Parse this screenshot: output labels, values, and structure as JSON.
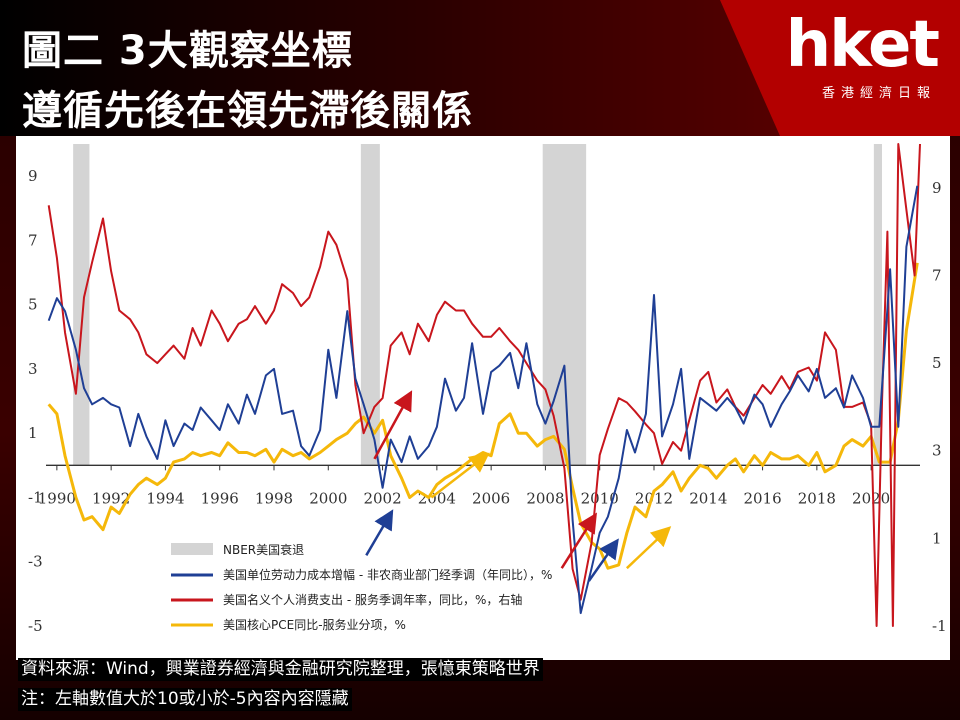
{
  "header": {
    "title_line1": "圖二 3大觀察坐標",
    "title_line2": "遵循先後在領先滯後關係",
    "logo": "hket",
    "logo_sub": "香港經濟日報"
  },
  "footer": {
    "source": "資料來源：Wind，興業證券經濟與金融研究院整理，張憶東策略世界",
    "note": "注：左軸數值大於10或小於-5內容內容隱藏"
  },
  "colors": {
    "blue": "#1f3f95",
    "red": "#c8161d",
    "yellow": "#f5b80a",
    "recession": "#d4d4d4"
  },
  "chart_data": {
    "type": "line",
    "x_ticks": [
      "1990",
      "1992",
      "1994",
      "1996",
      "1998",
      "2000",
      "2002",
      "2004",
      "2006",
      "2008",
      "2010",
      "2012",
      "2014",
      "2016",
      "2018",
      "2020"
    ],
    "xlim": [
      1989.6,
      2021.8
    ],
    "left_axis": {
      "ticks": [
        "9",
        "7",
        "5",
        "3",
        "1",
        "-1",
        "-3",
        "-5"
      ],
      "ylim": [
        -5,
        10
      ]
    },
    "right_axis": {
      "ticks": [
        "9",
        "7",
        "5",
        "3",
        "1",
        "-1"
      ],
      "ylim": [
        -1,
        10
      ]
    },
    "recessions": [
      [
        1990.6,
        1991.2
      ],
      [
        2001.2,
        2001.9
      ],
      [
        2007.9,
        2009.5
      ],
      [
        2020.1,
        2020.4
      ]
    ],
    "legend": [
      {
        "label": "NBER美国衰退",
        "kind": "band"
      },
      {
        "label": "美国单位劳动力成本增幅 - 非农商业部门经季调（年同比），%",
        "kind": "blue"
      },
      {
        "label": "美国名义个人消费支出 - 服务季调年率，同比，%，右轴",
        "kind": "red"
      },
      {
        "label": "美国核心PCE同比-服务业分项，%",
        "kind": "yellow"
      }
    ],
    "series": [
      {
        "key": "blue",
        "axis": "left",
        "x": [
          1989.7,
          1990.0,
          1990.3,
          1990.7,
          1991.0,
          1991.3,
          1991.7,
          1992.0,
          1992.3,
          1992.7,
          1993.0,
          1993.3,
          1993.7,
          1994.0,
          1994.3,
          1994.7,
          1995.0,
          1995.3,
          1995.7,
          1996.0,
          1996.3,
          1996.7,
          1997.0,
          1997.3,
          1997.7,
          1998.0,
          1998.3,
          1998.7,
          1999.0,
          1999.3,
          1999.7,
          2000.0,
          2000.3,
          2000.7,
          2001.0,
          2001.3,
          2001.7,
          2002.0,
          2002.3,
          2002.7,
          2003.0,
          2003.3,
          2003.7,
          2004.0,
          2004.3,
          2004.7,
          2005.0,
          2005.3,
          2005.7,
          2006.0,
          2006.3,
          2006.7,
          2007.0,
          2007.3,
          2007.7,
          2008.0,
          2008.3,
          2008.7,
          2009.0,
          2009.3,
          2009.7,
          2010.0,
          2010.3,
          2010.7,
          2011.0,
          2011.3,
          2011.7,
          2012.0,
          2012.3,
          2012.7,
          2013.0,
          2013.3,
          2013.7,
          2014.0,
          2014.3,
          2014.7,
          2015.0,
          2015.3,
          2015.7,
          2016.0,
          2016.3,
          2016.7,
          2017.0,
          2017.3,
          2017.7,
          2018.0,
          2018.3,
          2018.7,
          2019.0,
          2019.3,
          2019.7,
          2020.0,
          2020.3,
          2020.7,
          2021.0,
          2021.3,
          2021.7
        ],
        "y": [
          4.5,
          5.2,
          4.8,
          3.6,
          2.4,
          1.9,
          2.1,
          1.9,
          1.8,
          0.6,
          1.6,
          0.9,
          0.2,
          1.4,
          0.6,
          1.3,
          1.1,
          1.8,
          1.4,
          1.1,
          1.9,
          1.3,
          2.2,
          1.6,
          2.8,
          3.0,
          1.6,
          1.7,
          0.6,
          0.3,
          1.1,
          3.6,
          2.1,
          4.8,
          2.7,
          1.9,
          0.8,
          -0.7,
          0.8,
          0.1,
          0.9,
          0.2,
          0.6,
          1.2,
          2.7,
          1.7,
          2.1,
          3.8,
          1.6,
          2.9,
          3.1,
          3.5,
          2.4,
          3.8,
          1.9,
          1.3,
          2.0,
          3.1,
          -1.7,
          -4.6,
          -3.2,
          -2.1,
          -1.6,
          -0.4,
          1.1,
          0.4,
          1.6,
          5.3,
          0.9,
          1.9,
          3.0,
          0.2,
          2.1,
          1.9,
          1.7,
          2.1,
          1.8,
          1.3,
          2.2,
          1.9,
          1.2,
          1.9,
          2.3,
          2.8,
          2.3,
          3.0,
          2.1,
          2.4,
          1.8,
          2.8,
          2.1,
          1.2,
          1.2,
          6.1,
          1.2,
          6.8,
          8.7
        ]
      },
      {
        "key": "red",
        "axis": "right",
        "x": [
          1989.7,
          1990.0,
          1990.3,
          1990.7,
          1991.0,
          1991.3,
          1991.7,
          1992.0,
          1992.3,
          1992.7,
          1993.0,
          1993.3,
          1993.7,
          1994.0,
          1994.3,
          1994.7,
          1995.0,
          1995.3,
          1995.7,
          1996.0,
          1996.3,
          1996.7,
          1997.0,
          1997.3,
          1997.7,
          1998.0,
          1998.3,
          1998.7,
          1999.0,
          1999.3,
          1999.7,
          2000.0,
          2000.3,
          2000.7,
          2001.0,
          2001.3,
          2001.7,
          2002.0,
          2002.3,
          2002.7,
          2003.0,
          2003.3,
          2003.7,
          2004.0,
          2004.3,
          2004.7,
          2005.0,
          2005.3,
          2005.7,
          2006.0,
          2006.3,
          2006.7,
          2007.0,
          2007.3,
          2007.7,
          2008.0,
          2008.3,
          2008.7,
          2009.0,
          2009.3,
          2009.7,
          2010.0,
          2010.3,
          2010.7,
          2011.0,
          2011.3,
          2011.7,
          2012.0,
          2012.3,
          2012.7,
          2013.0,
          2013.3,
          2013.7,
          2014.0,
          2014.3,
          2014.7,
          2015.0,
          2015.3,
          2015.7,
          2016.0,
          2016.3,
          2016.7,
          2017.0,
          2017.3,
          2017.7,
          2018.0,
          2018.3,
          2018.7,
          2019.0,
          2019.3,
          2019.7,
          2020.0,
          2020.2,
          2020.4,
          2020.6,
          2020.8,
          2021.0,
          2021.3,
          2021.6,
          2021.8
        ],
        "y": [
          8.6,
          7.4,
          5.7,
          4.3,
          6.5,
          7.3,
          8.3,
          7.1,
          6.2,
          6.0,
          5.7,
          5.2,
          5.0,
          5.2,
          5.4,
          5.1,
          5.8,
          5.4,
          6.2,
          5.9,
          5.5,
          5.9,
          6.0,
          6.3,
          5.9,
          6.2,
          6.8,
          6.6,
          6.3,
          6.5,
          7.2,
          8.0,
          7.7,
          6.9,
          4.5,
          3.4,
          4.0,
          4.2,
          5.4,
          5.7,
          5.2,
          5.9,
          5.5,
          6.1,
          6.4,
          6.2,
          6.2,
          5.9,
          5.6,
          5.6,
          5.8,
          5.5,
          5.3,
          5.0,
          4.6,
          4.4,
          3.8,
          2.6,
          0.3,
          -0.4,
          0.9,
          2.9,
          3.5,
          4.2,
          4.1,
          3.9,
          3.6,
          3.4,
          2.7,
          3.2,
          3.0,
          3.7,
          4.6,
          4.8,
          4.1,
          4.4,
          4.0,
          3.8,
          4.2,
          4.5,
          4.3,
          4.7,
          4.4,
          4.8,
          4.9,
          4.6,
          5.7,
          5.3,
          4.0,
          4.0,
          4.1,
          3.6,
          -1.0,
          4.1,
          8.0,
          -1.0,
          10.0,
          8.5,
          7.0,
          10.0
        ]
      },
      {
        "key": "yellow",
        "axis": "left",
        "x": [
          1989.7,
          1990.0,
          1990.3,
          1990.7,
          1991.0,
          1991.3,
          1991.7,
          1992.0,
          1992.3,
          1992.7,
          1993.0,
          1993.3,
          1993.7,
          1994.0,
          1994.3,
          1994.7,
          1995.0,
          1995.3,
          1995.7,
          1996.0,
          1996.3,
          1996.7,
          1997.0,
          1997.3,
          1997.7,
          1998.0,
          1998.3,
          1998.7,
          1999.0,
          1999.3,
          1999.7,
          2000.0,
          2000.3,
          2000.7,
          2001.0,
          2001.3,
          2001.7,
          2002.0,
          2002.3,
          2002.7,
          2003.0,
          2003.3,
          2003.7,
          2004.0,
          2004.3,
          2004.7,
          2005.0,
          2005.3,
          2005.7,
          2006.0,
          2006.3,
          2006.7,
          2007.0,
          2007.3,
          2007.7,
          2008.0,
          2008.3,
          2008.7,
          2009.0,
          2009.3,
          2009.7,
          2010.0,
          2010.3,
          2010.7,
          2011.0,
          2011.3,
          2011.7,
          2012.0,
          2012.3,
          2012.7,
          2013.0,
          2013.3,
          2013.7,
          2014.0,
          2014.3,
          2014.7,
          2015.0,
          2015.3,
          2015.7,
          2016.0,
          2016.3,
          2016.7,
          2017.0,
          2017.3,
          2017.7,
          2018.0,
          2018.3,
          2018.7,
          2019.0,
          2019.3,
          2019.7,
          2020.0,
          2020.3,
          2020.7,
          2021.0,
          2021.3,
          2021.7
        ],
        "y": [
          1.9,
          1.6,
          0.3,
          -1.0,
          -1.7,
          -1.6,
          -2.0,
          -1.3,
          -1.5,
          -0.9,
          -0.6,
          -0.4,
          -0.6,
          -0.4,
          0.1,
          0.2,
          0.4,
          0.3,
          0.4,
          0.3,
          0.7,
          0.4,
          0.4,
          0.3,
          0.5,
          0.1,
          0.5,
          0.3,
          0.4,
          0.2,
          0.4,
          0.6,
          0.8,
          1.0,
          1.3,
          1.5,
          1.0,
          1.4,
          0.3,
          -0.4,
          -1.0,
          -0.8,
          -1.0,
          -0.6,
          -0.4,
          -0.2,
          0.0,
          0.2,
          0.4,
          0.3,
          1.3,
          1.6,
          1.0,
          1.0,
          0.6,
          0.8,
          0.9,
          0.5,
          -0.7,
          -1.8,
          -2.4,
          -2.6,
          -3.2,
          -3.1,
          -2.1,
          -1.3,
          -1.6,
          -0.8,
          -0.6,
          -0.2,
          -0.8,
          -0.4,
          0.0,
          -0.1,
          -0.4,
          0.0,
          0.2,
          -0.2,
          0.3,
          0.0,
          0.4,
          0.2,
          0.2,
          0.3,
          0.0,
          0.4,
          -0.2,
          0.0,
          0.6,
          0.8,
          0.6,
          0.9,
          0.1,
          0.1,
          1.4,
          4.2,
          6.3
        ]
      }
    ],
    "annotations": [
      {
        "color": "red",
        "from": [
          2001.7,
          0.2
        ],
        "to": [
          2003.0,
          2.2
        ]
      },
      {
        "color": "blue",
        "from": [
          2001.4,
          -2.8
        ],
        "to": [
          2002.3,
          -1.5
        ]
      },
      {
        "color": "yellow",
        "from": [
          2003.8,
          -1.0
        ],
        "to": [
          2005.8,
          0.3
        ]
      },
      {
        "color": "red",
        "from": [
          2008.6,
          -3.2
        ],
        "to": [
          2009.8,
          -1.6
        ]
      },
      {
        "color": "blue",
        "from": [
          2009.6,
          -3.6
        ],
        "to": [
          2010.6,
          -2.4
        ]
      },
      {
        "color": "yellow",
        "from": [
          2011.0,
          -3.2
        ],
        "to": [
          2012.5,
          -2.0
        ]
      }
    ]
  }
}
